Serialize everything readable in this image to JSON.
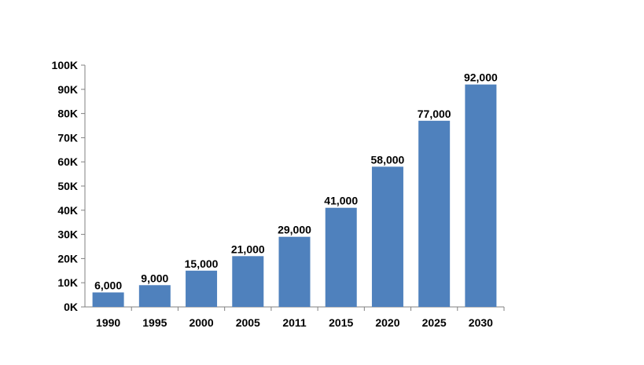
{
  "chart_data": {
    "type": "bar",
    "categories": [
      "1990",
      "1995",
      "2000",
      "2005",
      "2011",
      "2015",
      "2020",
      "2025",
      "2030"
    ],
    "values": [
      6000,
      9000,
      15000,
      21000,
      29000,
      41000,
      58000,
      77000,
      92000
    ],
    "data_labels": [
      "6,000",
      "9,000",
      "15,000",
      "21,000",
      "29,000",
      "41,000",
      "58,000",
      "77,000",
      "92,000"
    ],
    "yticks": [
      0,
      10000,
      20000,
      30000,
      40000,
      50000,
      60000,
      70000,
      80000,
      90000,
      100000
    ],
    "ytick_labels": [
      "0K",
      "10K",
      "20K",
      "30K",
      "40K",
      "50K",
      "60K",
      "70K",
      "80K",
      "90K",
      "100K"
    ],
    "ylim": [
      0,
      100000
    ],
    "grid": false,
    "legend": "none",
    "title": "",
    "xlabel": "",
    "ylabel": "",
    "colors": {
      "bar": "#4f81bd",
      "axis": "#808080",
      "text": "#000000"
    }
  }
}
